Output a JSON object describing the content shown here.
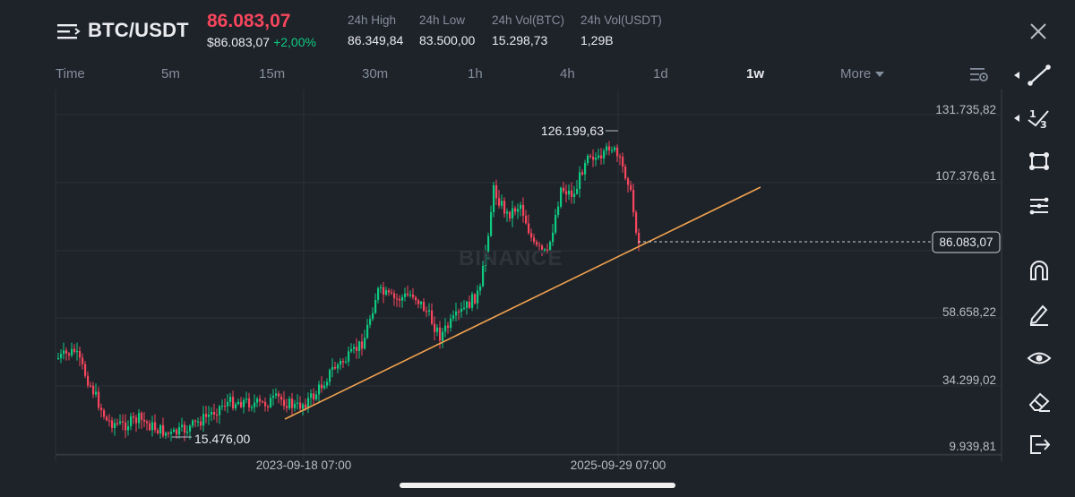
{
  "header": {
    "pair": "BTC/USDT",
    "last_price": "86.083,07",
    "usd_price": "$86.083,07",
    "change": "+2,00%",
    "stats": [
      {
        "label": "24h High",
        "value": "86.349,84"
      },
      {
        "label": "24h Low",
        "value": "83.500,00"
      },
      {
        "label": "24h Vol(BTC)",
        "value": "15.298,73"
      },
      {
        "label": "24h Vol(USDT)",
        "value": "1,29B"
      }
    ]
  },
  "tabs": [
    {
      "label": "Time",
      "active": false
    },
    {
      "label": "5m",
      "active": false
    },
    {
      "label": "15m",
      "active": false
    },
    {
      "label": "30m",
      "active": false
    },
    {
      "label": "1h",
      "active": false
    },
    {
      "label": "4h",
      "active": false
    },
    {
      "label": "1d",
      "active": false
    },
    {
      "label": "1w",
      "active": true
    },
    {
      "label": "More",
      "active": false
    }
  ],
  "chart": {
    "watermark": "BINANCE",
    "y_labels": [
      "131.735,82",
      "107.376,61",
      "58.658,22",
      "34.299,02",
      "9.939,81"
    ],
    "x_labels": [
      "2023-09-18 07:00",
      "2025-09-29 07:00"
    ],
    "current_price_label": "86.083,07",
    "high_label": "126.199,63",
    "low_label": "15.476,00",
    "colors": {
      "up": "#0ecb81",
      "down": "#f6465d",
      "trendline": "#f0a24e",
      "grid": "#2b3139"
    }
  },
  "toolbar": {
    "icons": [
      "trendline-icon",
      "fibonacci-icon",
      "rectangle-icon",
      "indicators-icon",
      "magnet-icon",
      "pen-icon",
      "eye-icon",
      "eraser-icon",
      "export-icon"
    ]
  }
}
